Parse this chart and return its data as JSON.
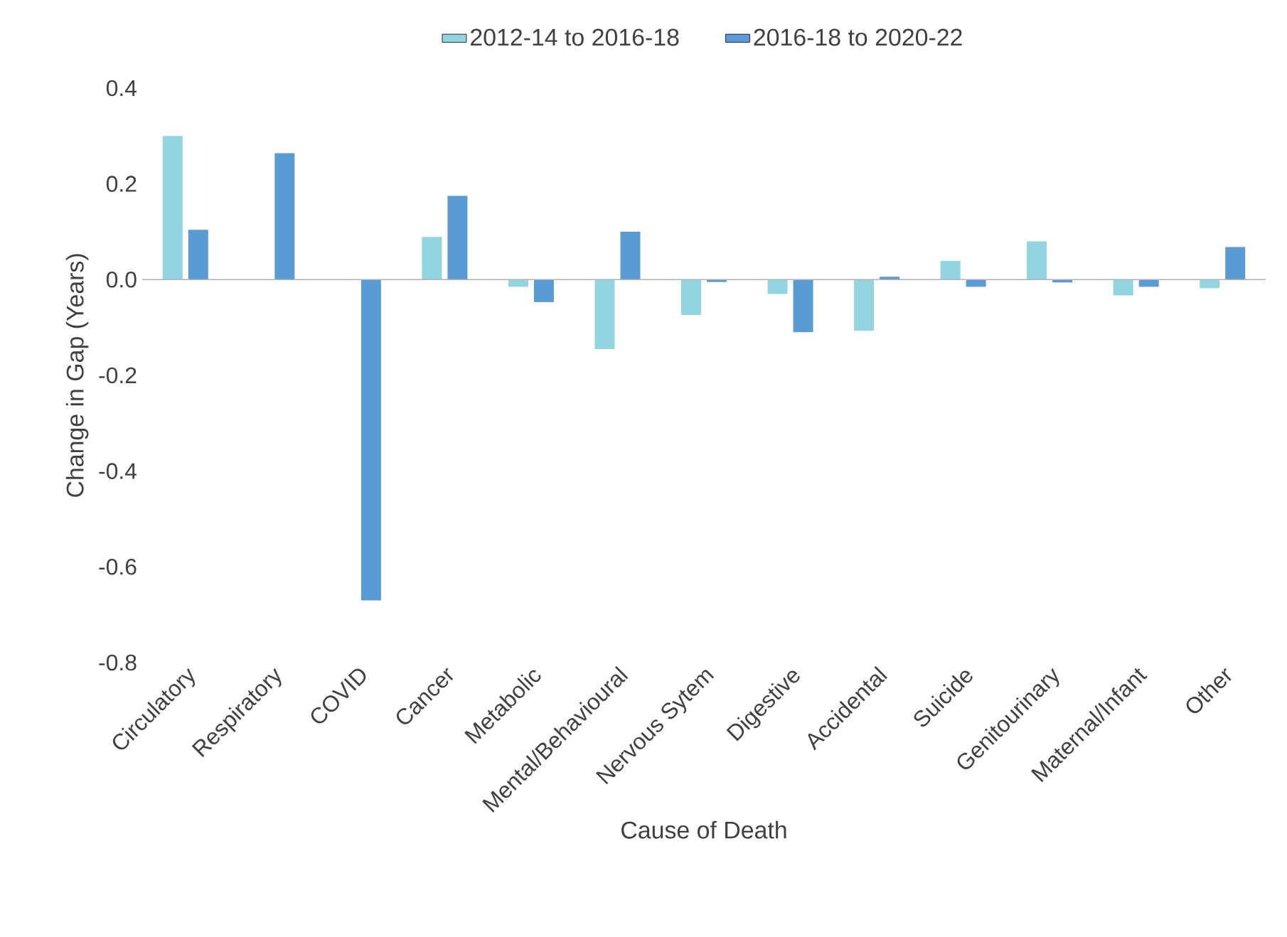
{
  "chart_data": {
    "type": "bar",
    "xlabel": "Cause of Death",
    "ylabel": "Change in Gap (Years)",
    "categories": [
      "Circulatory",
      "Respiratory",
      "COVID",
      "Cancer",
      "Metabolic",
      "Mental/Behavioural",
      "Nervous Sytem",
      "Digestive",
      "Accidental",
      "Suicide",
      "Genitourinary",
      "Maternal/Infant",
      "Other"
    ],
    "series": [
      {
        "name": "2012-14 to 2016-18",
        "color": "#92d5e0",
        "values": [
          0.3,
          0.0,
          0.0,
          0.089,
          -0.015,
          -0.145,
          -0.074,
          -0.03,
          -0.107,
          0.039,
          0.08,
          -0.033,
          -0.018
        ]
      },
      {
        "name": "2016-18 to 2020-22",
        "color": "#5b9bd5",
        "values": [
          0.104,
          0.264,
          -0.67,
          0.175,
          -0.047,
          0.1,
          -0.005,
          -0.11,
          0.006,
          -0.015,
          -0.006,
          -0.015,
          0.068
        ]
      }
    ],
    "ylim": [
      -0.8,
      0.4
    ],
    "yticks": [
      -0.8,
      -0.6,
      -0.4,
      -0.2,
      {
        "value": 0,
        "label": "0.0"
      },
      0.2,
      0.4
    ],
    "legend": "top"
  }
}
